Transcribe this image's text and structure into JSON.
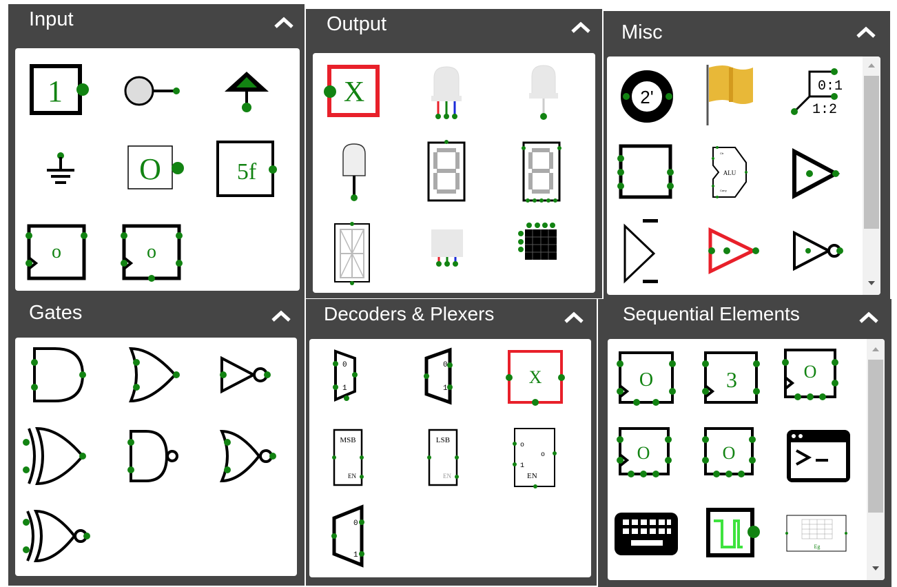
{
  "panels": {
    "input": {
      "title": "Input"
    },
    "output": {
      "title": "Output"
    },
    "misc": {
      "title": "Misc"
    },
    "gates": {
      "title": "Gates"
    },
    "decoders": {
      "title": "Decoders & Plexers"
    },
    "sequential": {
      "title": "Sequential Elements"
    }
  },
  "icons": {
    "collapse": "chevron-up-icon"
  },
  "colors": {
    "header": "#454545",
    "node": "#128312",
    "accent_red": "#e8202a",
    "wire_green": "#3ee33e"
  },
  "labels": {
    "input_button_value": "1",
    "input_output_value": "O",
    "input_constant_value": "5f",
    "input_stepper1_value": "o",
    "input_stepper2_value": "o",
    "output_probe_value": "X",
    "misc_twos_complement": "2'",
    "misc_splitter_top": "0:1",
    "misc_splitter_bottom": "1:2",
    "misc_alu": "ALU",
    "misc_alu_ctr": "Ctr",
    "misc_alu_carry": "Carry",
    "dec_mux_in0": "0",
    "dec_mux_in1": "1",
    "dec_demux_out0": "0",
    "dec_demux_out1": "1",
    "dec_tristate": "X",
    "dec_msb": "MSB",
    "dec_en1": "EN",
    "dec_lsb": "LSB",
    "dec_en2": "EN",
    "dec_decoder_o1": "o",
    "dec_decoder_o2": "o",
    "dec_decoder_1": "1",
    "dec_decoder_en": "EN",
    "dec_priority_0": "0",
    "dec_priority_1": "1",
    "seq_dflip": "O",
    "seq_counter": "3",
    "seq_tflip": "O",
    "seq_jk": "O",
    "seq_sr": "O",
    "seq_ram_label": "Eg"
  }
}
